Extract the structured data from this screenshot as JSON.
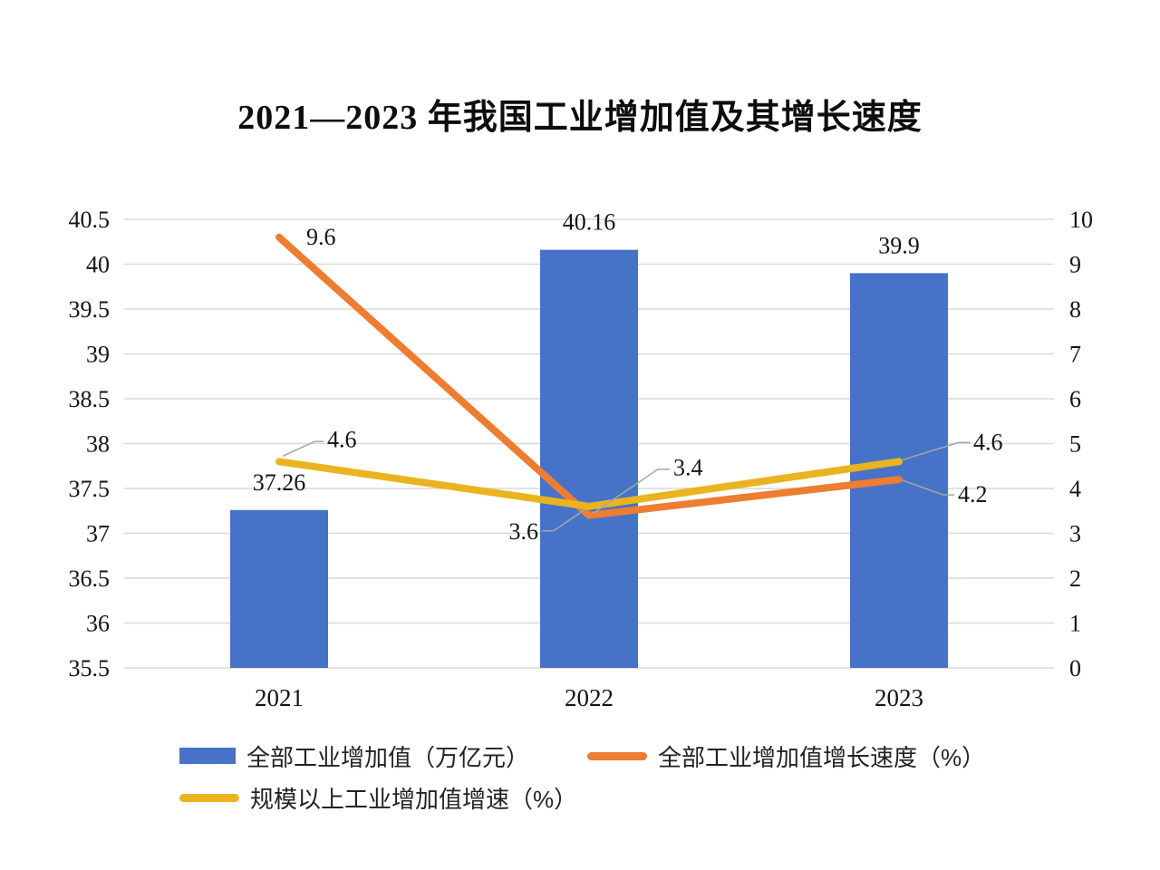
{
  "chart_data": {
    "type": "combo-bar-line",
    "title": "2021—2023 年我国工业增加值及其增长速度",
    "categories": [
      "2021",
      "2022",
      "2023"
    ],
    "series": [
      {
        "name": "全部工业增加值（万亿元）",
        "type": "bar",
        "axis": "left",
        "color": "#4673C8",
        "values": [
          37.26,
          40.16,
          39.9
        ],
        "labels": [
          "37.26",
          "40.16",
          "39.9"
        ]
      },
      {
        "name": "全部工业增加值增长速度（%）",
        "type": "line",
        "axis": "right",
        "color": "#ED7D31",
        "values": [
          9.6,
          3.4,
          4.2
        ],
        "labels": [
          "9.6",
          "3.4",
          "4.2"
        ]
      },
      {
        "name": "规模以上工业增加值增速（%）",
        "type": "line",
        "axis": "right",
        "color": "#E9B41F",
        "values": [
          4.6,
          3.6,
          4.6
        ],
        "labels": [
          "4.6",
          "3.6",
          "4.6"
        ]
      }
    ],
    "left_axis": {
      "min": 35.5,
      "max": 40.5,
      "step": 0.5,
      "ticks": [
        "40.5",
        "40",
        "39.5",
        "39",
        "38.5",
        "38",
        "37.5",
        "37",
        "36.5",
        "36",
        "35.5"
      ]
    },
    "right_axis": {
      "min": 0,
      "max": 10,
      "step": 1,
      "ticks": [
        "10",
        "9",
        "8",
        "7",
        "6",
        "5",
        "4",
        "3",
        "2",
        "1",
        "0"
      ]
    },
    "grid": "horizontal",
    "legend_position": "bottom",
    "colors": {
      "gridline": "#D9D9D9",
      "leader": "#A6A6A6",
      "text": "#141414",
      "background": "#FFFFFF"
    }
  }
}
